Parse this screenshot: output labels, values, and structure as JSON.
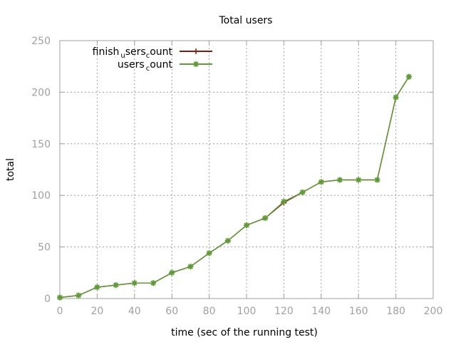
{
  "chart_data": {
    "type": "line",
    "title": "Total users",
    "xlabel": "time (sec of the running test)",
    "ylabel": "total",
    "xlim": [
      0,
      200
    ],
    "ylim": [
      0,
      250
    ],
    "xticks": [
      0,
      20,
      40,
      60,
      80,
      100,
      120,
      140,
      160,
      180,
      200
    ],
    "yticks": [
      0,
      50,
      100,
      150,
      200,
      250
    ],
    "grid": true,
    "legend_position": "top-left",
    "series": [
      {
        "name_main": "finish",
        "name_sub1": "u",
        "name_mid": "sers",
        "name_sub2": "c",
        "name_end": "ount",
        "color": "#8b1a0e",
        "marker": "plus",
        "x": [
          0,
          10,
          20,
          30,
          40,
          50,
          60,
          70,
          80,
          90,
          100,
          110,
          120,
          130,
          140,
          150,
          160,
          170,
          180,
          187
        ],
        "y": [
          1,
          3,
          11,
          13,
          15,
          15,
          25,
          31,
          44,
          56,
          71,
          78,
          93,
          103,
          113,
          115,
          115,
          115,
          195,
          215
        ]
      },
      {
        "name_main": "users",
        "name_sub1": "c",
        "name_mid": "ount",
        "name_sub2": "",
        "name_end": "",
        "color": "#5e9c36",
        "marker": "star",
        "x": [
          0,
          10,
          20,
          30,
          40,
          50,
          60,
          70,
          80,
          90,
          100,
          110,
          120,
          130,
          140,
          150,
          160,
          170,
          180,
          187
        ],
        "y": [
          1,
          3,
          11,
          13,
          15,
          15,
          25,
          31,
          44,
          56,
          71,
          78,
          94,
          103,
          113,
          115,
          115,
          115,
          195,
          215
        ]
      }
    ]
  }
}
